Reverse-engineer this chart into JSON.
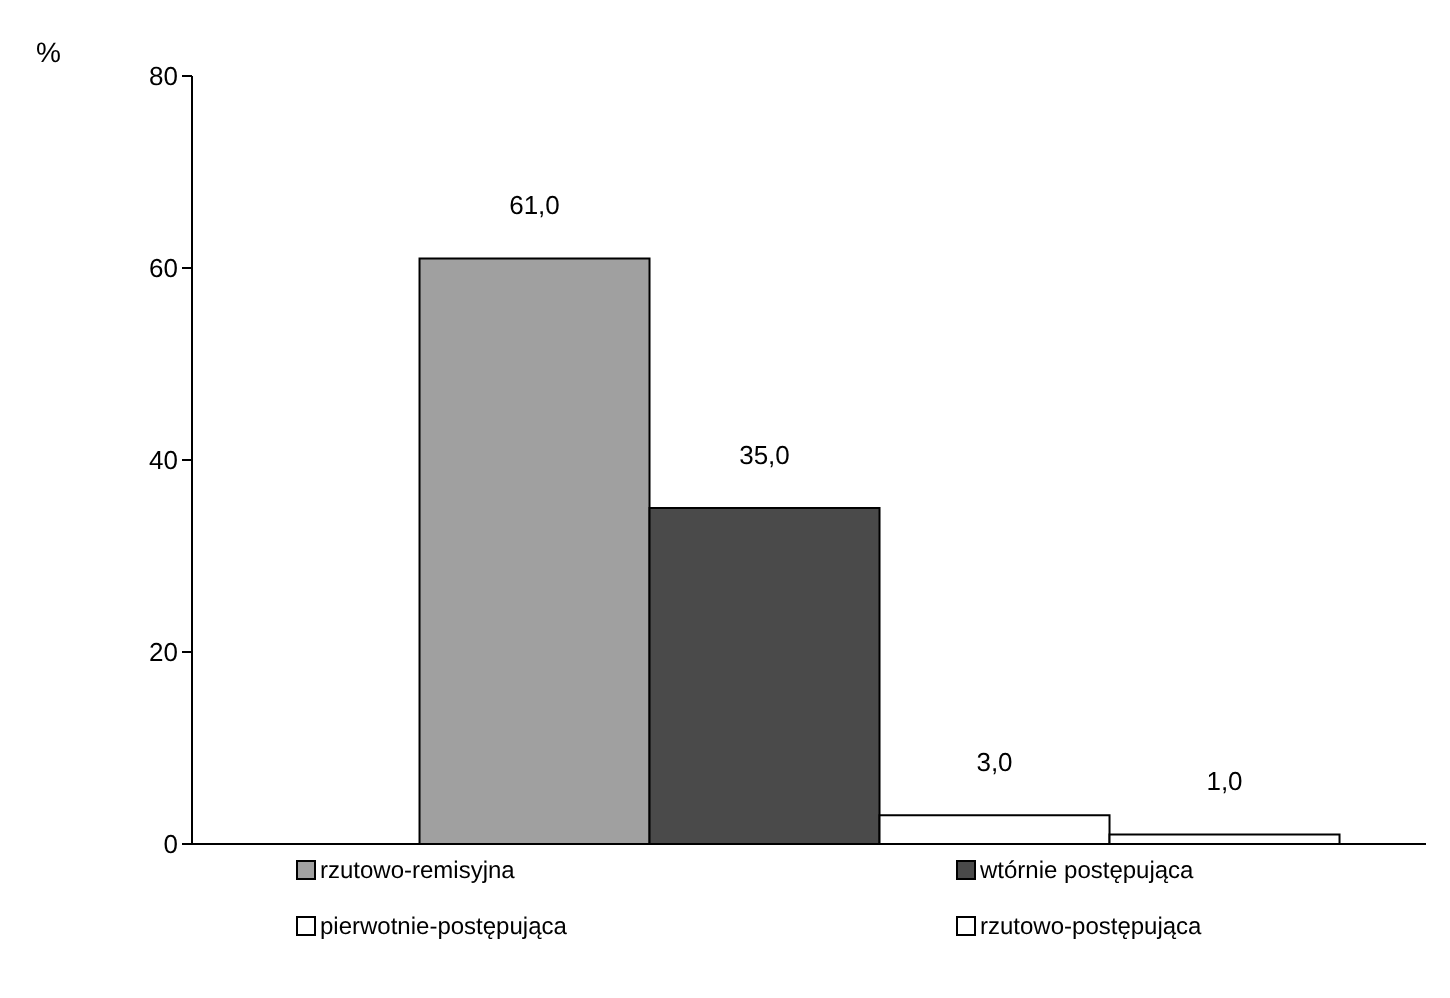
{
  "chart_data": {
    "type": "bar",
    "ylabel": "%",
    "categories": [
      null
    ],
    "ylim": [
      0,
      80
    ],
    "yticks": [
      0,
      20,
      40,
      60,
      80
    ],
    "grid": false,
    "legend": "bottom",
    "series": [
      {
        "name": "rzutowo-remisyjna",
        "color": "#a0a0a0",
        "values": [
          61
        ],
        "value_labels": [
          "61,0"
        ]
      },
      {
        "name": "wtórnie postępująca",
        "color": "#4a4a4a",
        "values": [
          35
        ],
        "value_labels": [
          "35,0"
        ]
      },
      {
        "name": "pierwotnie-postępująca",
        "color": "#ffffff",
        "values": [
          3
        ],
        "value_labels": [
          "3,0"
        ]
      },
      {
        "name": "rzutowo-postępująca",
        "color": "#ffffff",
        "values": [
          1
        ],
        "value_labels": [
          "1,0"
        ]
      }
    ]
  }
}
